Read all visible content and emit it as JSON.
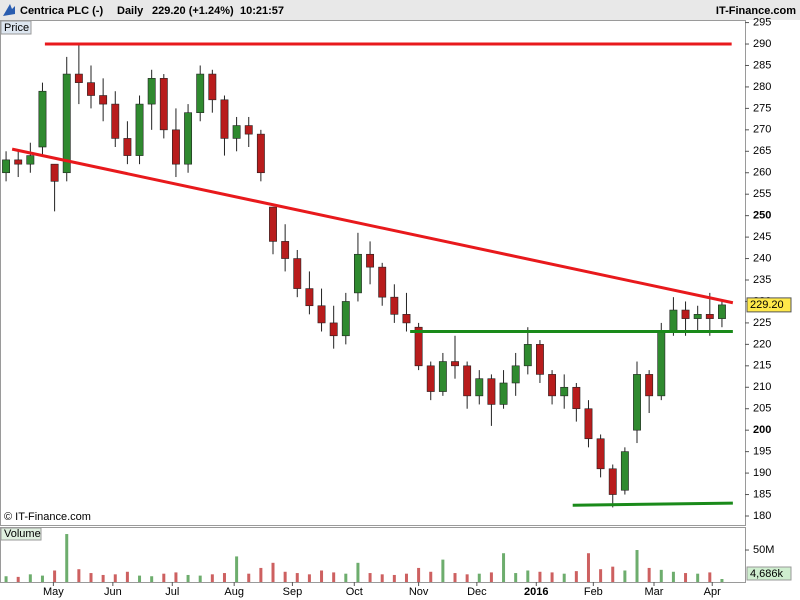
{
  "chart_data": {
    "type": "candlestick",
    "title": "Centrica PLC (-)",
    "period": "Daily",
    "header_price": "229.20 (+1.24%)",
    "header_time": "10:21:57",
    "source": "IT-Finance.com",
    "copyright": "© IT-Finance.com",
    "y_label": "Price",
    "volume_label": "Volume",
    "up_color": "#2f8a2f",
    "down_color": "#b81c1c",
    "open": [
      260,
      263,
      262,
      266,
      262,
      260,
      283,
      281,
      278,
      276,
      268,
      264,
      276,
      282,
      270,
      262,
      274,
      283,
      277,
      268,
      271,
      269,
      252,
      244,
      240,
      233,
      229,
      225,
      222,
      232,
      241,
      238,
      231,
      227,
      224,
      215,
      209,
      216,
      215,
      208,
      212,
      206,
      211,
      215,
      220,
      213,
      208,
      210,
      205,
      198,
      191,
      186,
      200,
      213,
      208,
      223,
      228,
      226,
      227,
      226
    ],
    "high": [
      265,
      265,
      267,
      281,
      262,
      287,
      290,
      285,
      282,
      279,
      272,
      278,
      284,
      283,
      275,
      276,
      285,
      284,
      278,
      273,
      273,
      270,
      252,
      248,
      242,
      237,
      233,
      229,
      232,
      246,
      244,
      239,
      234,
      232,
      225,
      216,
      218,
      222,
      216,
      214,
      213,
      214,
      218,
      224,
      221,
      214,
      213,
      211,
      207,
      199,
      192,
      196,
      216,
      214,
      225,
      231,
      230,
      229,
      232,
      230
    ],
    "low": [
      258,
      259,
      260,
      264,
      251,
      258,
      276,
      275,
      272,
      266,
      262,
      262,
      270,
      268,
      259,
      260,
      272,
      274,
      264,
      265,
      266,
      258,
      241,
      237,
      231,
      227,
      223,
      219,
      220,
      230,
      234,
      229,
      225,
      223,
      214,
      207,
      208,
      212,
      205,
      206,
      201,
      205,
      208,
      213,
      211,
      206,
      205,
      202,
      196,
      189,
      182,
      185,
      197,
      204,
      207,
      222,
      222,
      223,
      222,
      224
    ],
    "close": [
      263,
      262,
      264,
      279,
      258,
      283,
      281,
      278,
      276,
      268,
      264,
      276,
      282,
      270,
      262,
      274,
      283,
      277,
      268,
      271,
      269,
      260,
      244,
      240,
      233,
      229,
      225,
      222,
      230,
      241,
      238,
      231,
      227,
      225,
      215,
      209,
      216,
      215,
      208,
      212,
      206,
      211,
      215,
      220,
      213,
      208,
      210,
      205,
      198,
      191,
      185,
      195,
      213,
      208,
      223,
      228,
      226,
      227,
      226,
      229.2
    ],
    "volume": [
      9000000,
      8000000,
      12000000,
      10000000,
      18000000,
      75000000,
      20000000,
      14000000,
      11000000,
      12000000,
      16000000,
      10000000,
      9000000,
      13000000,
      15000000,
      11000000,
      10000000,
      12000000,
      14000000,
      40000000,
      13000000,
      22000000,
      30000000,
      16000000,
      14000000,
      12000000,
      18000000,
      15000000,
      13000000,
      30000000,
      14000000,
      12000000,
      11000000,
      13000000,
      22000000,
      16000000,
      35000000,
      14000000,
      12000000,
      13000000,
      15000000,
      45000000,
      14000000,
      18000000,
      16000000,
      15000000,
      13000000,
      17000000,
      45000000,
      20000000,
      24000000,
      18000000,
      50000000,
      22000000,
      19000000,
      16000000,
      14000000,
      13000000,
      15000000,
      4686000
    ],
    "xlim": [
      -0.5,
      60.9
    ],
    "xticks": [
      {
        "value": 3.9,
        "label": "May"
      },
      {
        "value": 8.8,
        "label": "Jun"
      },
      {
        "value": 13.7,
        "label": "Jul"
      },
      {
        "value": 18.8,
        "label": "Aug"
      },
      {
        "value": 23.6,
        "label": "Sep"
      },
      {
        "value": 28.7,
        "label": "Oct"
      },
      {
        "value": 34.0,
        "label": "Nov"
      },
      {
        "value": 38.8,
        "label": "Dec"
      },
      {
        "value": 43.7,
        "label": "2016"
      },
      {
        "value": 48.4,
        "label": "Feb"
      },
      {
        "value": 53.4,
        "label": "Mar"
      },
      {
        "value": 58.2,
        "label": "Apr"
      }
    ],
    "ylim": [
      177.9,
      295.6
    ],
    "yticks": [
      180,
      185,
      190,
      195,
      200,
      205,
      210,
      215,
      220,
      225,
      230,
      235,
      240,
      245,
      250,
      255,
      260,
      265,
      270,
      275,
      280,
      285,
      290,
      295
    ],
    "last_price": {
      "value": 229.2,
      "label": "229.20"
    },
    "volume_ylim": [
      0,
      86000000
    ],
    "volume_yticks": [
      {
        "value": 50000000,
        "label": "50M"
      }
    ],
    "volume_last": {
      "value": 4686000,
      "label": "4,686k"
    },
    "trendlines": [
      {
        "color": "#e8191c",
        "points": [
          [
            3.2,
            290
          ],
          [
            59.8,
            290
          ]
        ]
      },
      {
        "color": "#e8191c",
        "points": [
          [
            0.5,
            265.5
          ],
          [
            59.9,
            229.7
          ]
        ]
      },
      {
        "color": "#1a8a1a",
        "points": [
          [
            33.3,
            223
          ],
          [
            59.9,
            223
          ]
        ]
      },
      {
        "color": "#1a8a1a",
        "points": [
          [
            46.7,
            182.5
          ],
          [
            59.9,
            183
          ]
        ]
      }
    ]
  }
}
